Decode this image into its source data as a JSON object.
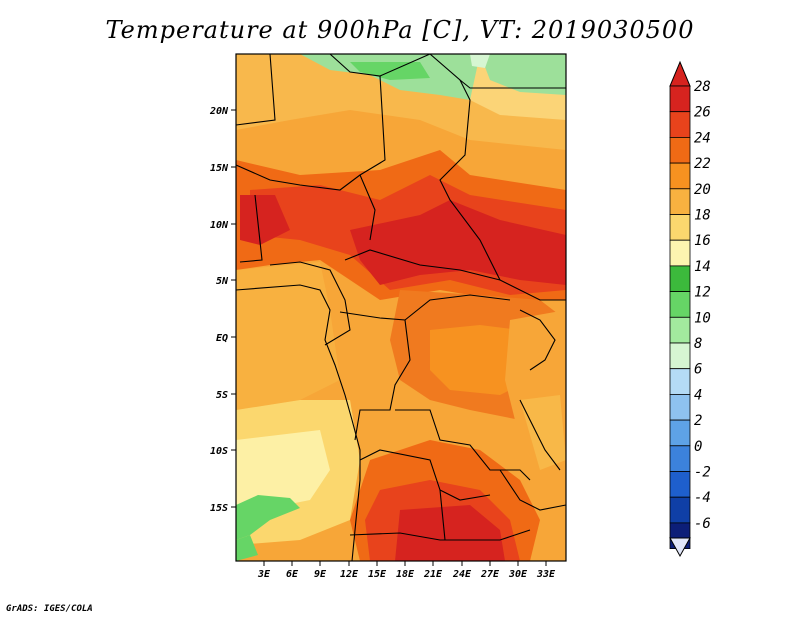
{
  "title": "Temperature at 900hPa [C], VT: 2019030500",
  "credit": "GrADS: IGES/COLA",
  "map": {
    "lon_ticks": [
      "3E",
      "6E",
      "9E",
      "12E",
      "15E",
      "18E",
      "21E",
      "24E",
      "27E",
      "30E",
      "33E"
    ],
    "lat_ticks": [
      "20N",
      "15N",
      "10N",
      "5N",
      "EQ",
      "5S",
      "10S",
      "15S"
    ]
  },
  "colorbar": {
    "labels": [
      "28",
      "26",
      "24",
      "22",
      "20",
      "18",
      "16",
      "14",
      "12",
      "10",
      "8",
      "6",
      "4",
      "2",
      "0",
      "-2",
      "-4",
      "-6"
    ],
    "colors": [
      "#d6231f",
      "#e8431c",
      "#f06a15",
      "#f79220",
      "#f8b140",
      "#fbd76e",
      "#fdf5b0",
      "#3cba3c",
      "#66d566",
      "#a2ea9e",
      "#d6f6d2",
      "#b4dbf6",
      "#8ec2f0",
      "#5ea2e6",
      "#3c82dc",
      "#1e5fcd",
      "#0f3fa6",
      "#0c1e78"
    ],
    "top_arrow_color": "#d6231f",
    "bottom_arrow_color": "#e1e6f8"
  }
}
